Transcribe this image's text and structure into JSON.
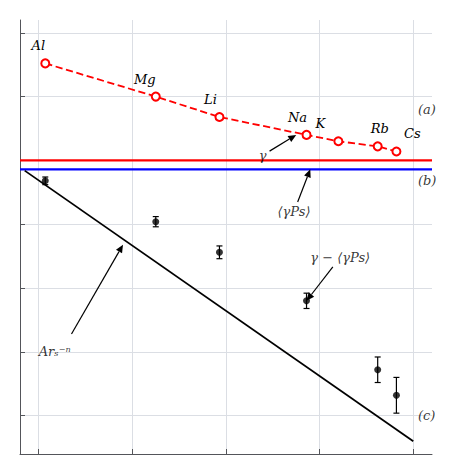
{
  "chart_data": {
    "type": "line",
    "xlim": [
      1.8,
      6.2
    ],
    "xticks": [
      2,
      3,
      4,
      5,
      6
    ],
    "ylim": [
      -0.65,
      1.05
    ],
    "yticks": [
      -0.5,
      -0.25,
      0,
      0.25,
      0.5,
      0.75,
      1
    ],
    "grid": true,
    "tick_labels": false,
    "hlines": [
      {
        "y": 0.5,
        "color": "red"
      },
      {
        "y": 0.465,
        "color": "blue"
      }
    ],
    "series": [
      {
        "type": "line",
        "color": "red",
        "line_style": "dashed",
        "marker": "circle_open",
        "x": [
          2.07,
          3.25,
          3.93,
          4.86,
          5.2,
          5.62,
          5.82
        ],
        "values": [
          0.88,
          0.75,
          0.67,
          0.6,
          0.575,
          0.555,
          0.535
        ],
        "labels": [
          "Al",
          "Mg",
          "Li",
          "Na",
          "K",
          "Rb",
          "Cs"
        ]
      },
      {
        "type": "line",
        "color": "black",
        "line_style": "solid",
        "marker": "none",
        "x": [
          1.85,
          6.0
        ],
        "values": [
          0.46,
          -0.6
        ]
      },
      {
        "type": "scatter",
        "color": "black",
        "marker": "circle",
        "x": [
          2.07,
          3.25,
          3.93,
          4.86,
          5.62,
          5.82
        ],
        "values": [
          0.42,
          0.26,
          0.14,
          -0.05,
          -0.32,
          -0.42
        ],
        "errors": [
          0.015,
          0.02,
          0.025,
          0.03,
          0.05,
          0.07
        ]
      }
    ],
    "annotations": [
      {
        "text": "(a)",
        "x": 6.05,
        "y": 0.7
      },
      {
        "text": "(b)",
        "x": 6.05,
        "y": 0.42
      },
      {
        "text": "(c)",
        "x": 6.05,
        "y": -0.5
      },
      {
        "text": "γ",
        "x": 4.35,
        "y": 0.52,
        "arrow_x": 4.75,
        "arrow_y": 0.6
      },
      {
        "text": "⟨γPs⟩",
        "x": 4.55,
        "y": 0.3,
        "arrow_x": 4.9,
        "arrow_y": 0.465
      },
      {
        "text": "γ − ⟨γPs⟩",
        "x": 4.9,
        "y": 0.12,
        "arrow_x": 4.86,
        "arrow_y": -0.05
      },
      {
        "text": "Arₛ⁻ⁿ",
        "x": 2.0,
        "y": -0.25
      }
    ],
    "arrows": [
      {
        "x0": 2.35,
        "y0": -0.18,
        "x": 2.9,
        "y": 0.17
      }
    ]
  }
}
